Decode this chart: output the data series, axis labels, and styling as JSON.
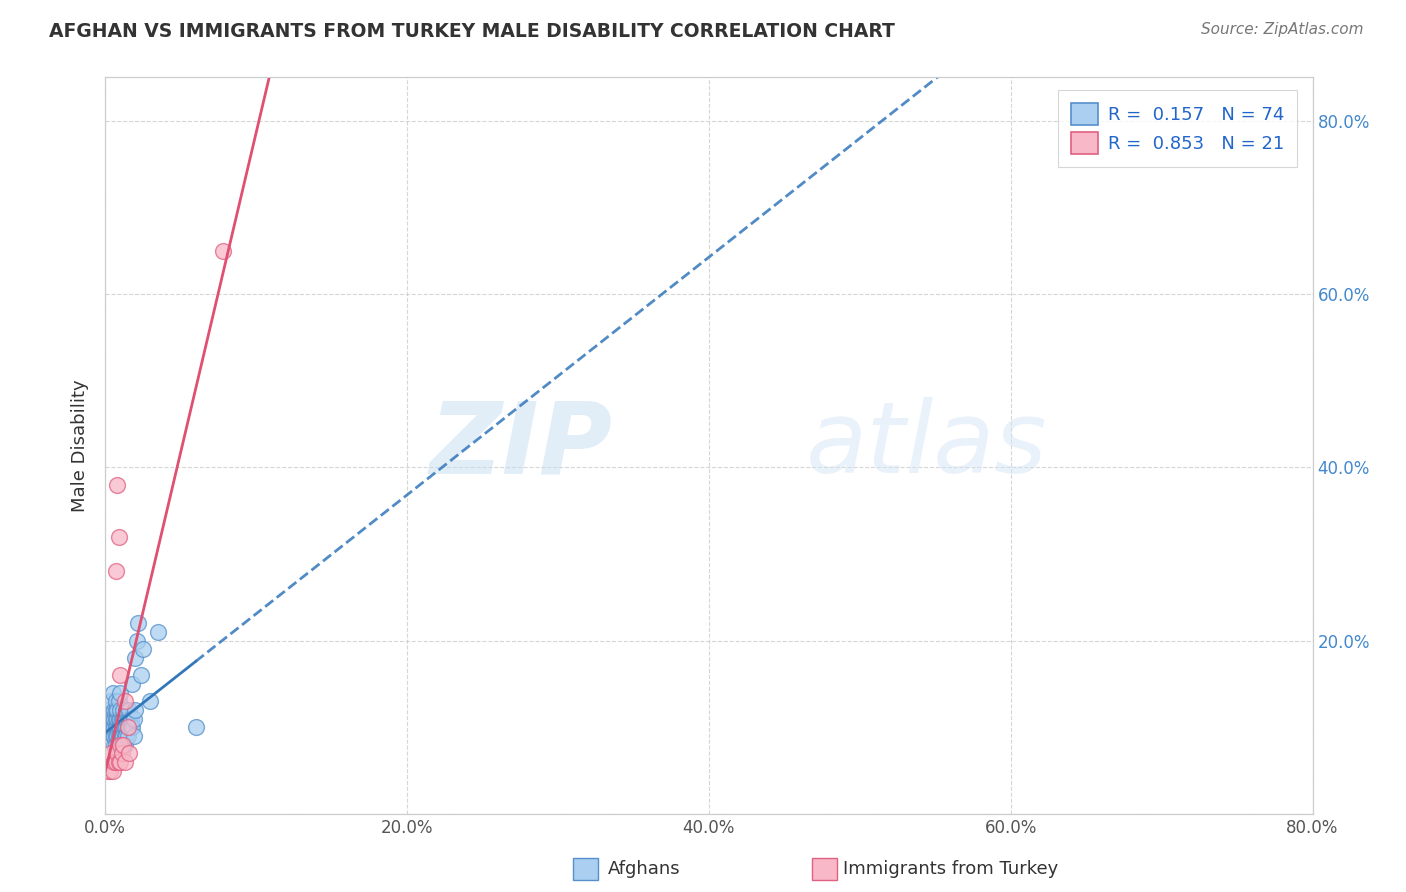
{
  "title": "AFGHAN VS IMMIGRANTS FROM TURKEY MALE DISABILITY CORRELATION CHART",
  "source": "Source: ZipAtlas.com",
  "ylabel": "Male Disability",
  "watermark_zip": "ZIP",
  "watermark_atlas": "atlas",
  "xlim": [
    0.0,
    0.8
  ],
  "ylim": [
    0.0,
    0.85
  ],
  "xticks": [
    0.0,
    0.2,
    0.4,
    0.6,
    0.8
  ],
  "yticks": [
    0.0,
    0.2,
    0.4,
    0.6,
    0.8
  ],
  "xtick_labels": [
    "0.0%",
    "20.0%",
    "40.0%",
    "60.0%",
    "80.0%"
  ],
  "ytick_labels": [
    "",
    "20.0%",
    "40.0%",
    "60.0%",
    "80.0%"
  ],
  "grid_color": "#cccccc",
  "afghans_fill": "#aacff0",
  "afghans_edge": "#5590cc",
  "turkey_fill": "#f8b8c8",
  "turkey_edge": "#e06080",
  "afghans_reg_color": "#3377bb",
  "turkey_reg_color": "#e05070",
  "legend_r1_label": "R =  0.157   N = 74",
  "legend_r2_label": "R =  0.853   N = 21",
  "r_afghans": 0.157,
  "n_afghans": 74,
  "r_turkey": 0.853,
  "n_turkey": 21,
  "afghans_x": [
    0.002,
    0.003,
    0.004,
    0.004,
    0.005,
    0.005,
    0.005,
    0.005,
    0.006,
    0.006,
    0.006,
    0.006,
    0.006,
    0.007,
    0.007,
    0.007,
    0.007,
    0.007,
    0.007,
    0.008,
    0.008,
    0.008,
    0.008,
    0.008,
    0.009,
    0.009,
    0.009,
    0.009,
    0.009,
    0.01,
    0.01,
    0.01,
    0.01,
    0.01,
    0.01,
    0.01,
    0.011,
    0.011,
    0.011,
    0.011,
    0.012,
    0.012,
    0.012,
    0.012,
    0.012,
    0.013,
    0.013,
    0.013,
    0.013,
    0.014,
    0.014,
    0.014,
    0.014,
    0.015,
    0.015,
    0.015,
    0.016,
    0.016,
    0.016,
    0.017,
    0.017,
    0.018,
    0.018,
    0.019,
    0.019,
    0.02,
    0.02,
    0.021,
    0.022,
    0.024,
    0.025,
    0.03,
    0.035,
    0.06
  ],
  "afghans_y": [
    0.12,
    0.1,
    0.11,
    0.13,
    0.09,
    0.1,
    0.11,
    0.14,
    0.1,
    0.11,
    0.12,
    0.08,
    0.09,
    0.1,
    0.11,
    0.12,
    0.09,
    0.13,
    0.08,
    0.1,
    0.11,
    0.09,
    0.12,
    0.07,
    0.1,
    0.11,
    0.09,
    0.08,
    0.13,
    0.1,
    0.11,
    0.12,
    0.09,
    0.08,
    0.07,
    0.14,
    0.1,
    0.11,
    0.09,
    0.08,
    0.1,
    0.11,
    0.12,
    0.09,
    0.08,
    0.1,
    0.11,
    0.09,
    0.08,
    0.1,
    0.11,
    0.12,
    0.09,
    0.1,
    0.11,
    0.09,
    0.1,
    0.11,
    0.12,
    0.1,
    0.11,
    0.1,
    0.15,
    0.11,
    0.09,
    0.18,
    0.12,
    0.2,
    0.22,
    0.16,
    0.19,
    0.13,
    0.21,
    0.1
  ],
  "turkey_x": [
    0.002,
    0.003,
    0.004,
    0.005,
    0.006,
    0.007,
    0.007,
    0.008,
    0.008,
    0.009,
    0.009,
    0.01,
    0.01,
    0.01,
    0.011,
    0.012,
    0.013,
    0.013,
    0.015,
    0.016,
    0.078
  ],
  "turkey_y": [
    0.05,
    0.05,
    0.07,
    0.05,
    0.06,
    0.28,
    0.06,
    0.38,
    0.07,
    0.32,
    0.06,
    0.08,
    0.16,
    0.06,
    0.07,
    0.08,
    0.13,
    0.06,
    0.1,
    0.07,
    0.65
  ],
  "background_color": "#ffffff",
  "plot_bg_color": "#ffffff",
  "right_ytick_color": "#4488cc",
  "title_color": "#333333",
  "source_color": "#777777"
}
